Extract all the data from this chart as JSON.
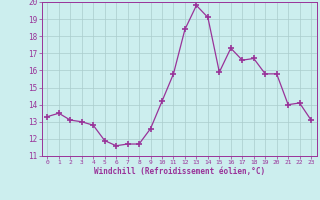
{
  "x": [
    0,
    1,
    2,
    3,
    4,
    5,
    6,
    7,
    8,
    9,
    10,
    11,
    12,
    13,
    14,
    15,
    16,
    17,
    18,
    19,
    20,
    21,
    22,
    23
  ],
  "y": [
    13.3,
    13.5,
    13.1,
    13.0,
    12.8,
    11.9,
    11.6,
    11.7,
    11.7,
    12.6,
    14.2,
    15.8,
    18.4,
    19.8,
    19.1,
    15.9,
    17.3,
    16.6,
    16.7,
    15.8,
    15.8,
    14.0,
    14.1,
    13.1
  ],
  "line_color": "#993399",
  "marker": "+",
  "marker_size": 4,
  "bg_color": "#cceeee",
  "grid_color": "#aacccc",
  "xlabel": "Windchill (Refroidissement éolien,°C)",
  "xlabel_color": "#993399",
  "tick_color": "#993399",
  "ylim": [
    11,
    20
  ],
  "yticks": [
    11,
    12,
    13,
    14,
    15,
    16,
    17,
    18,
    19,
    20
  ],
  "xticks": [
    0,
    1,
    2,
    3,
    4,
    5,
    6,
    7,
    8,
    9,
    10,
    11,
    12,
    13,
    14,
    15,
    16,
    17,
    18,
    19,
    20,
    21,
    22,
    23
  ],
  "spine_color": "#993399"
}
